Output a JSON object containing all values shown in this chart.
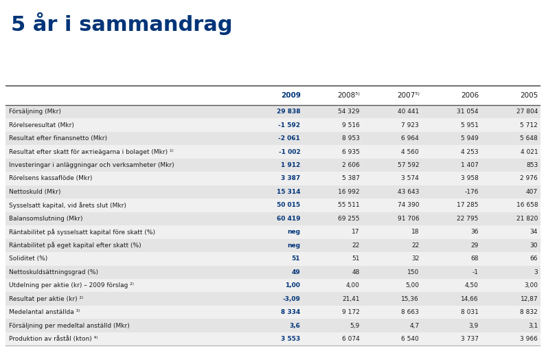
{
  "title": "5 år i sammandrag",
  "title_color": "#003478",
  "title_fontsize": 22,
  "columns": [
    "",
    "2009",
    "2008⁵⁾",
    "2007⁵⁾",
    "2006",
    "2005"
  ],
  "rows": [
    [
      "Försäljning (Mkr)",
      "29 838",
      "54 329",
      "40 441",
      "31 054",
      "27 804"
    ],
    [
      "Rörelseresultat (Mkr)",
      "-1 592",
      "9 516",
      "7 923",
      "5 951",
      "5 712"
    ],
    [
      "Resultat efter finansnetto (Mkr)",
      "-2 061",
      "8 953",
      "6 964",
      "5 949",
      "5 648"
    ],
    [
      "Resultat efter skatt för aктieägarna i bolaget (Mkr) ¹⁾",
      "-1 002",
      "6 935",
      "4 560",
      "4 253",
      "4 021"
    ],
    [
      "Investeringar i anläggningar och verksamheter (Mkr)",
      "1 912",
      "2 606",
      "57 592",
      "1 407",
      "853"
    ],
    [
      "Rörelsens kassaflöde (Mkr)",
      "3 387",
      "5 387",
      "3 574",
      "3 958",
      "2 976"
    ],
    [
      "Nettoskuld (Mkr)",
      "15 314",
      "16 992",
      "43 643",
      "-176",
      "407"
    ],
    [
      "Sysselsatt kapital, vid årets slut (Mkr)",
      "50 015",
      "55 511",
      "74 390",
      "17 285",
      "16 658"
    ],
    [
      "Balansomslutning (Mkr)",
      "60 419",
      "69 255",
      "91 706",
      "22 795",
      "21 820"
    ],
    [
      "Räntabilitet på sysselsatt kapital före skatt (%)",
      "neg",
      "17",
      "18",
      "36",
      "34"
    ],
    [
      "Räntabilitet på eget kapital efter skatt (%)",
      "neg",
      "22",
      "22",
      "29",
      "30"
    ],
    [
      "Soliditet (%)",
      "51",
      "51",
      "32",
      "68",
      "66"
    ],
    [
      "Nettoskuldsättningsgrad (%)",
      "49",
      "48",
      "150",
      "-1",
      "3"
    ],
    [
      "Utdelning per aktie (kr) – 2009 förslag ²⁾",
      "1,00",
      "4,00",
      "5,00",
      "4,50",
      "3,00"
    ],
    [
      "Resultat per aktie (kr) ²⁾",
      "-3,09",
      "21,41",
      "15,36",
      "14,66",
      "12,87"
    ],
    [
      "Medelantal anställda ³⁾",
      "8 334",
      "9 172",
      "8 663",
      "8 031",
      "8 832"
    ],
    [
      "Försäljning per medeltal anställd (Mkr)",
      "3,6",
      "5,9",
      "4,7",
      "3,9",
      "3,1"
    ],
    [
      "Produktion av råstål (kton) ⁴⁾",
      "3 553",
      "6 074",
      "6 540",
      "3 737",
      "3 966"
    ]
  ],
  "blue_color": "#003478",
  "bg_odd": "#e4e4e4",
  "bg_even": "#f0f0f0",
  "text_color": "#1a1a1a",
  "line_color_dark": "#555555",
  "line_color_light": "#aaaaaa"
}
